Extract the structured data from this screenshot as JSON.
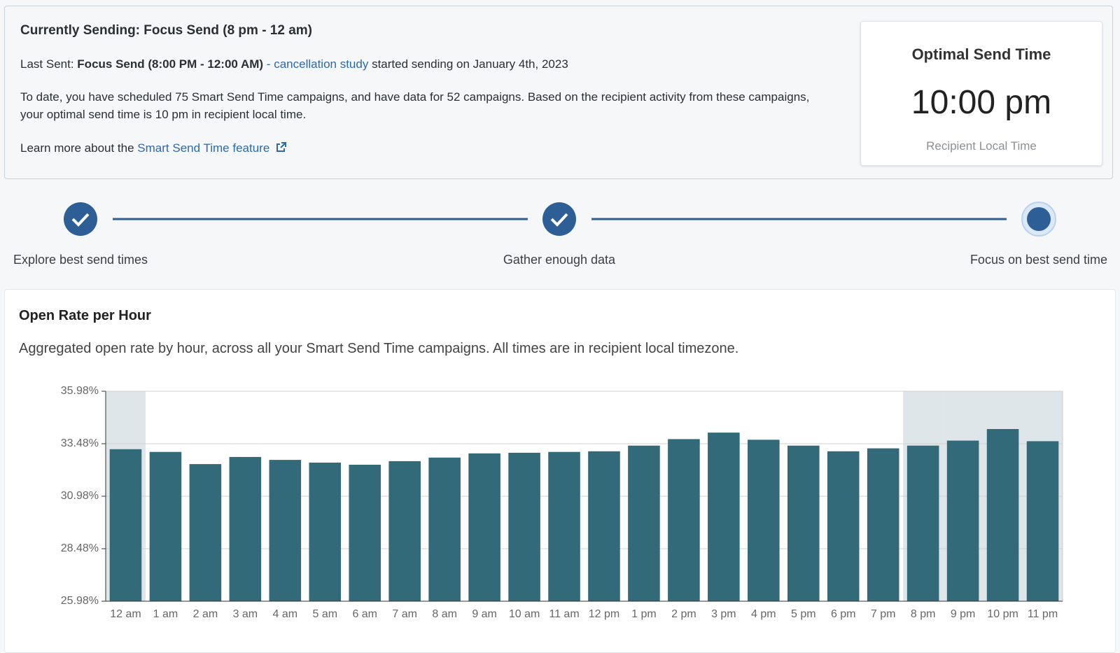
{
  "status": {
    "title": "Currently Sending: Focus Send (8 pm - 12 am)",
    "last_sent_label": "Last Sent:",
    "last_sent_campaign": "Focus Send (8:00 PM - 12:00 AM)",
    "separator": "-",
    "last_sent_link": "cancellation study",
    "last_sent_suffix": "started sending on January 4th, 2023",
    "description": "To date, you have scheduled 75 Smart Send Time campaigns, and have data for 52 campaigns. Based on the recipient activity from these campaigns, your optimal send time is 10 pm in recipient local time.",
    "learn_more": "Learn more about the",
    "learn_more_link": "Smart Send Time feature"
  },
  "optimal": {
    "title": "Optimal Send Time",
    "time": "10:00 pm",
    "caption": "Recipient Local Time"
  },
  "steps": [
    "Explore best send times",
    "Gather enough data",
    "Focus on best send time"
  ],
  "chart_data": {
    "type": "bar",
    "title": "Open Rate per Hour",
    "subtitle": "Aggregated open rate by hour, across all your Smart Send Time campaigns. All times are in recipient local timezone.",
    "categories": [
      "12 am",
      "1 am",
      "2 am",
      "3 am",
      "4 am",
      "5 am",
      "6 am",
      "7 am",
      "8 am",
      "9 am",
      "10 am",
      "11 am",
      "12 pm",
      "1 pm",
      "2 pm",
      "3 pm",
      "4 pm",
      "5 pm",
      "6 pm",
      "7 pm",
      "8 pm",
      "9 pm",
      "10 pm",
      "11 pm"
    ],
    "values": [
      33.22,
      33.09,
      32.51,
      32.85,
      32.71,
      32.58,
      32.48,
      32.65,
      32.82,
      33.02,
      33.05,
      33.09,
      33.12,
      33.39,
      33.7,
      34.01,
      33.67,
      33.39,
      33.12,
      33.26,
      33.39,
      33.63,
      34.18,
      33.6
    ],
    "highlighted": [
      true,
      false,
      false,
      false,
      false,
      false,
      false,
      false,
      false,
      false,
      false,
      false,
      false,
      false,
      false,
      false,
      false,
      false,
      false,
      false,
      true,
      true,
      true,
      true
    ],
    "color": "#326a7a",
    "highlight_color": "#dfe6e9",
    "ylim": [
      25.98,
      35.98
    ],
    "yticks": [
      {
        "value": 25.98,
        "label": "25.98%"
      },
      {
        "value": 28.48,
        "label": "28.48%"
      },
      {
        "value": 30.98,
        "label": "30.98%"
      },
      {
        "value": 33.48,
        "label": "33.48%"
      },
      {
        "value": 35.98,
        "label": "35.98%"
      }
    ],
    "grid": true
  }
}
